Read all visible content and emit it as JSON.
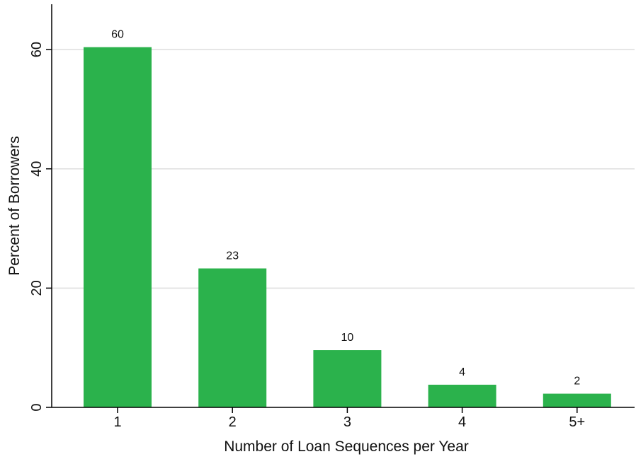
{
  "chart_data": {
    "type": "bar",
    "title": "",
    "xlabel": "Number of Loan Sequences per Year",
    "ylabel": "Percent of Borrowers",
    "categories": [
      "1",
      "2",
      "3",
      "4",
      "5+"
    ],
    "values": [
      60.4,
      23.3,
      9.6,
      3.8,
      2.3
    ],
    "data_labels": [
      "60",
      "23",
      "10",
      "4",
      "2"
    ],
    "yticks": [
      0,
      20,
      40,
      60
    ],
    "ylim": [
      0,
      67.6
    ],
    "grid": true,
    "legend": "none",
    "colors": {
      "bar": "#2bb24c",
      "grid": "#dddddd",
      "axis": "#000000"
    }
  }
}
